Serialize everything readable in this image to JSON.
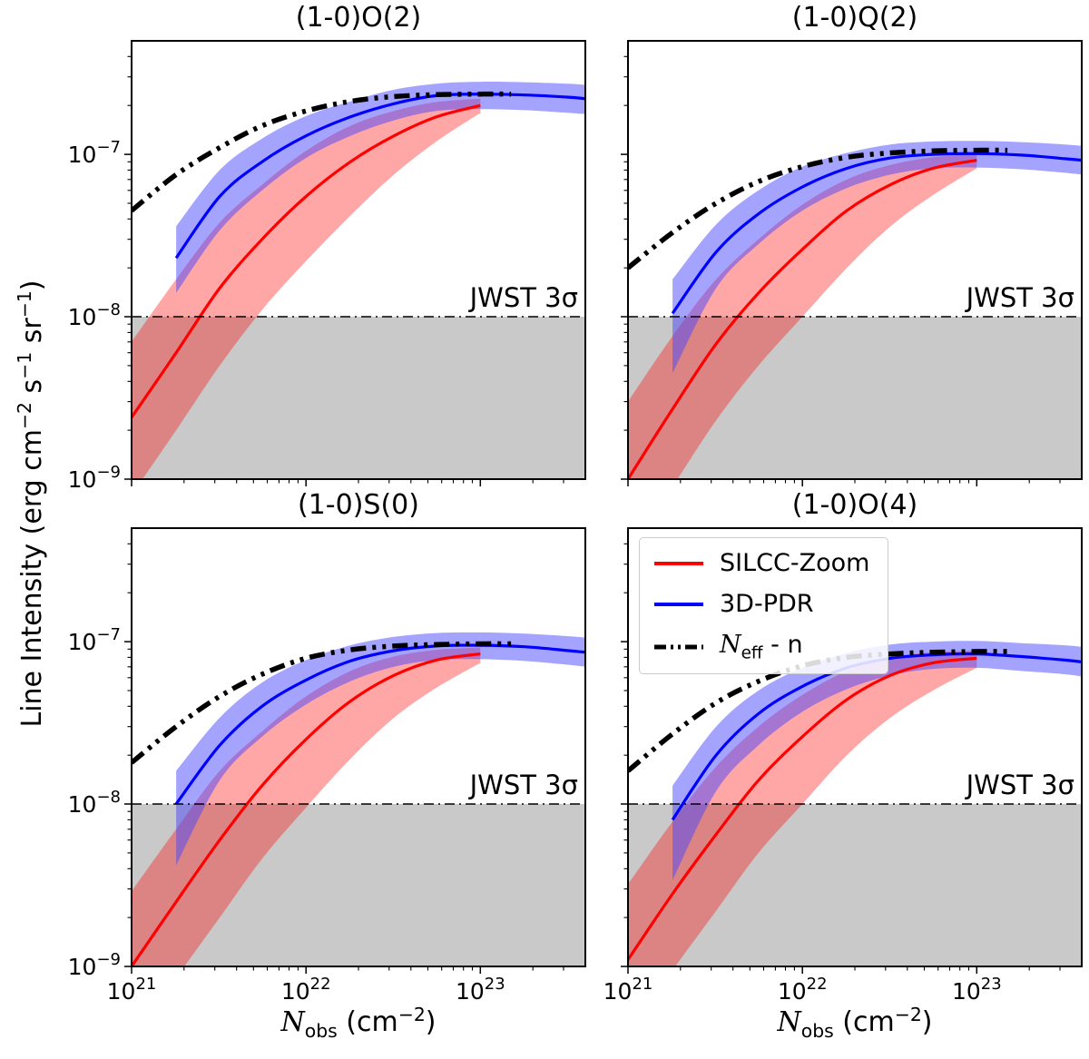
{
  "chart_data": {
    "type": "line",
    "x_scale": "log",
    "y_scale": "log",
    "xlim": [
      1e+21,
      4e+23
    ],
    "ylim": [
      1e-09,
      5e-07
    ],
    "x_major_ticks": [
      1e+21,
      1e+22,
      1e+23
    ],
    "y_major_ticks": [
      1e-09,
      1e-08,
      1e-07
    ],
    "grid": false,
    "legend_position": "upper-left-of-panel-(1-0)O(4)",
    "ylabel_parts": {
      "p1": "Line Intensity (erg cm",
      "s1": "−2",
      "p2": " s",
      "s2": "−1",
      "p3": " sr",
      "s3": "−1",
      "p4": ")"
    },
    "xlabel_parts": {
      "n": "N",
      "sub": "obs",
      "rest_pre": " (cm",
      "sup": "−2",
      "rest_post": ")"
    },
    "threshold": {
      "value": 1e-08,
      "label": "JWST 3σ"
    },
    "colors": {
      "silcc": "#ff0000",
      "pdr": "#0000ff",
      "silcc_band": "#ff000059",
      "pdr_band": "#4545ff7d",
      "model": "#000000",
      "below_threshold": "#c9c9c9",
      "frame": "#000000"
    },
    "legend": [
      {
        "label": "SILCC-Zoom",
        "color": "#ff0000",
        "style": "solid"
      },
      {
        "label": "3D-PDR",
        "color": "#0000ff",
        "style": "solid"
      },
      {
        "label_parts": {
          "n": "N",
          "sub": "eff",
          "rest": " - n"
        },
        "color": "#000000",
        "style": "dashdot"
      }
    ],
    "panels": [
      {
        "title": "(1-0)O(2)",
        "show_y_ticklabels": true,
        "show_x_ticklabels": false,
        "silcc": {
          "x": [
            1e+21,
            1.8e+21,
            3.2e+21,
            5.6e+21,
            1e+22,
            1.8e+22,
            3.2e+22,
            5.6e+22,
            1e+23
          ],
          "y": [
            2.4e-09,
            6e-09,
            1.5e-08,
            3e-08,
            5.5e-08,
            9e-08,
            1.3e-07,
            1.7e-07,
            2e-07
          ],
          "lo": [
            8e-10,
            2e-09,
            5e-09,
            1.1e-08,
            2.2e-08,
            4.2e-08,
            7.5e-08,
            1.2e-07,
            1.8e-07
          ],
          "hi": [
            7e-09,
            1.7e-08,
            3.8e-08,
            6.5e-08,
            1.05e-07,
            1.5e-07,
            1.85e-07,
            2.1e-07,
            2.2e-07
          ]
        },
        "pdr": {
          "x": [
            1.8e+21,
            3.2e+21,
            5.6e+21,
            1e+22,
            1.8e+22,
            3.2e+22,
            5.6e+22,
            1e+23,
            1.8e+23,
            3.2e+23,
            4e+23
          ],
          "y": [
            2.3e-08,
            5.5e-08,
            9e-08,
            1.3e-07,
            1.7e-07,
            2.05e-07,
            2.3e-07,
            2.35e-07,
            2.32e-07,
            2.25e-07,
            2.2e-07
          ],
          "lo": [
            1.4e-08,
            3.4e-08,
            6e-08,
            9.5e-08,
            1.3e-07,
            1.62e-07,
            1.85e-07,
            1.9e-07,
            1.87e-07,
            1.8e-07,
            1.77e-07
          ],
          "hi": [
            3.6e-08,
            8e-08,
            1.25e-07,
            1.72e-07,
            2.12e-07,
            2.5e-07,
            2.72e-07,
            2.8e-07,
            2.78e-07,
            2.72e-07,
            2.68e-07
          ]
        },
        "model": {
          "x": [
            1e+21,
            1.8e+21,
            3.2e+21,
            5.6e+21,
            1e+22,
            1.8e+22,
            3.2e+22,
            5.6e+22,
            1e+23,
            1.5e+23
          ],
          "y": [
            4.5e-08,
            7.5e-08,
            1.1e-07,
            1.5e-07,
            1.85e-07,
            2.12e-07,
            2.27e-07,
            2.33e-07,
            2.35e-07,
            2.35e-07
          ]
        }
      },
      {
        "title": "(1-0)Q(2)",
        "show_y_ticklabels": false,
        "show_x_ticklabels": false,
        "silcc": {
          "x": [
            1e+21,
            1.8e+21,
            3.2e+21,
            5.6e+21,
            1e+22,
            1.8e+22,
            3.2e+22,
            5.6e+22,
            1e+23
          ],
          "y": [
            1e-09,
            2.7e-09,
            6.8e-09,
            1.4e-08,
            2.6e-08,
            4.5e-08,
            6.5e-08,
            8.2e-08,
            9.2e-08
          ],
          "lo": [
            3.5e-10,
            9e-10,
            2.3e-09,
            5e-09,
            1e-08,
            2e-08,
            3.6e-08,
            5.6e-08,
            8.2e-08
          ],
          "hi": [
            3e-09,
            7.6e-09,
            1.7e-08,
            3e-08,
            4.9e-08,
            7e-08,
            8.6e-08,
            9.6e-08,
            1e-07
          ]
        },
        "pdr": {
          "x": [
            1.8e+21,
            3.2e+21,
            5.6e+21,
            1e+22,
            1.8e+22,
            3.2e+22,
            5.6e+22,
            1e+23,
            1.8e+23,
            3.2e+23,
            4e+23
          ],
          "y": [
            1.05e-08,
            2.5e-08,
            4.3e-08,
            6.3e-08,
            8.2e-08,
            9.5e-08,
            1e-07,
            1.01e-07,
            9.9e-08,
            9.4e-08,
            9.2e-08
          ],
          "lo": [
            4.5e-09,
            1.5e-08,
            2.8e-08,
            4.5e-08,
            6.2e-08,
            7.5e-08,
            8.2e-08,
            8.3e-08,
            8.1e-08,
            7.7e-08,
            7.5e-08
          ],
          "hi": [
            1.7e-08,
            3.7e-08,
            6e-08,
            8.4e-08,
            1.02e-07,
            1.15e-07,
            1.2e-07,
            1.21e-07,
            1.19e-07,
            1.15e-07,
            1.13e-07
          ]
        },
        "model": {
          "x": [
            1e+21,
            1.8e+21,
            3.2e+21,
            5.6e+21,
            1e+22,
            1.8e+22,
            3.2e+22,
            5.6e+22,
            1e+23,
            1.5e+23
          ],
          "y": [
            2e-08,
            3.3e-08,
            5e-08,
            6.8e-08,
            8.4e-08,
            9.6e-08,
            1.02e-07,
            1.05e-07,
            1.06e-07,
            1.06e-07
          ]
        }
      },
      {
        "title": "(1-0)S(0)",
        "show_y_ticklabels": true,
        "show_x_ticklabels": true,
        "silcc": {
          "x": [
            1e+21,
            1.8e+21,
            3.2e+21,
            5.6e+21,
            1e+22,
            1.8e+22,
            3.2e+22,
            5.6e+22,
            1e+23
          ],
          "y": [
            1e-09,
            2.5e-09,
            6e-09,
            1.3e-08,
            2.5e-08,
            4.3e-08,
            6.2e-08,
            7.7e-08,
            8.4e-08
          ],
          "lo": [
            3.5e-10,
            8.5e-10,
            2e-09,
            4.6e-09,
            9.5e-09,
            1.9e-08,
            3.4e-08,
            5.2e-08,
            7.4e-08
          ],
          "hi": [
            2.9e-09,
            7e-09,
            1.6e-08,
            2.8e-08,
            4.6e-08,
            6.6e-08,
            8.1e-08,
            8.9e-08,
            9.2e-08
          ]
        },
        "pdr": {
          "x": [
            1.8e+21,
            3.2e+21,
            5.6e+21,
            1e+22,
            1.8e+22,
            3.2e+22,
            5.6e+22,
            1e+23,
            1.8e+23,
            3.2e+23,
            4e+23
          ],
          "y": [
            1e-08,
            2.3e-08,
            4e-08,
            5.8e-08,
            7.6e-08,
            8.8e-08,
            9.4e-08,
            9.5e-08,
            9.3e-08,
            8.8e-08,
            8.6e-08
          ],
          "lo": [
            4.2e-09,
            1.4e-08,
            2.6e-08,
            4.1e-08,
            5.7e-08,
            7e-08,
            7.7e-08,
            7.8e-08,
            7.6e-08,
            7.2e-08,
            7e-08
          ],
          "hi": [
            1.6e-08,
            3.4e-08,
            5.6e-08,
            7.7e-08,
            9.5e-08,
            1.07e-07,
            1.13e-07,
            1.14e-07,
            1.12e-07,
            1.08e-07,
            1.06e-07
          ]
        },
        "model": {
          "x": [
            1e+21,
            1.8e+21,
            3.2e+21,
            5.6e+21,
            1e+22,
            1.8e+22,
            3.2e+22,
            5.6e+22,
            1e+23,
            1.5e+23
          ],
          "y": [
            1.8e-08,
            3e-08,
            4.6e-08,
            6.3e-08,
            7.9e-08,
            8.9e-08,
            9.4e-08,
            9.6e-08,
            9.7e-08,
            9.7e-08
          ]
        }
      },
      {
        "title": "(1-0)O(4)",
        "show_y_ticklabels": false,
        "show_x_ticklabels": true,
        "silcc": {
          "x": [
            1e+21,
            1.8e+21,
            3.2e+21,
            5.6e+21,
            1e+22,
            1.8e+22,
            3.2e+22,
            5.6e+22,
            1e+23
          ],
          "y": [
            1.1e-09,
            2.8e-09,
            6.5e-09,
            1.4e-08,
            2.6e-08,
            4.4e-08,
            6.2e-08,
            7.4e-08,
            7.9e-08
          ],
          "lo": [
            4e-10,
            9.5e-10,
            2.2e-09,
            5e-09,
            1e-08,
            2e-08,
            3.4e-08,
            5e-08,
            6.9e-08
          ],
          "hi": [
            3.2e-09,
            7.8e-09,
            1.7e-08,
            3e-08,
            4.7e-08,
            6.6e-08,
            8e-08,
            8.6e-08,
            8.8e-08
          ]
        },
        "pdr": {
          "x": [
            1.8e+21,
            3.2e+21,
            5.6e+21,
            1e+22,
            1.8e+22,
            3.2e+22,
            5.6e+22,
            1e+23,
            1.8e+23,
            3.2e+23,
            4e+23
          ],
          "y": [
            8e-09,
            2e-08,
            3.6e-08,
            5.3e-08,
            6.9e-08,
            7.9e-08,
            8.3e-08,
            8.4e-08,
            8.1e-08,
            7.7e-08,
            7.5e-08
          ],
          "lo": [
            3.4e-09,
            1.2e-08,
            2.3e-08,
            3.7e-08,
            5.1e-08,
            6.2e-08,
            6.8e-08,
            6.9e-08,
            6.6e-08,
            6.3e-08,
            6.1e-08
          ],
          "hi": [
            1.3e-08,
            3e-08,
            5e-08,
            6.9e-08,
            8.5e-08,
            9.6e-08,
            1e-07,
            1.01e-07,
            9.8e-08,
            9.5e-08,
            9.3e-08
          ]
        },
        "model": {
          "x": [
            1e+21,
            1.8e+21,
            3.2e+21,
            5.6e+21,
            1e+22,
            1.8e+22,
            3.2e+22,
            5.6e+22,
            1e+23,
            1.5e+23
          ],
          "y": [
            1.6e-08,
            2.7e-08,
            4.2e-08,
            5.7e-08,
            7.1e-08,
            8e-08,
            8.4e-08,
            8.6e-08,
            8.7e-08,
            8.7e-08
          ]
        }
      }
    ]
  }
}
